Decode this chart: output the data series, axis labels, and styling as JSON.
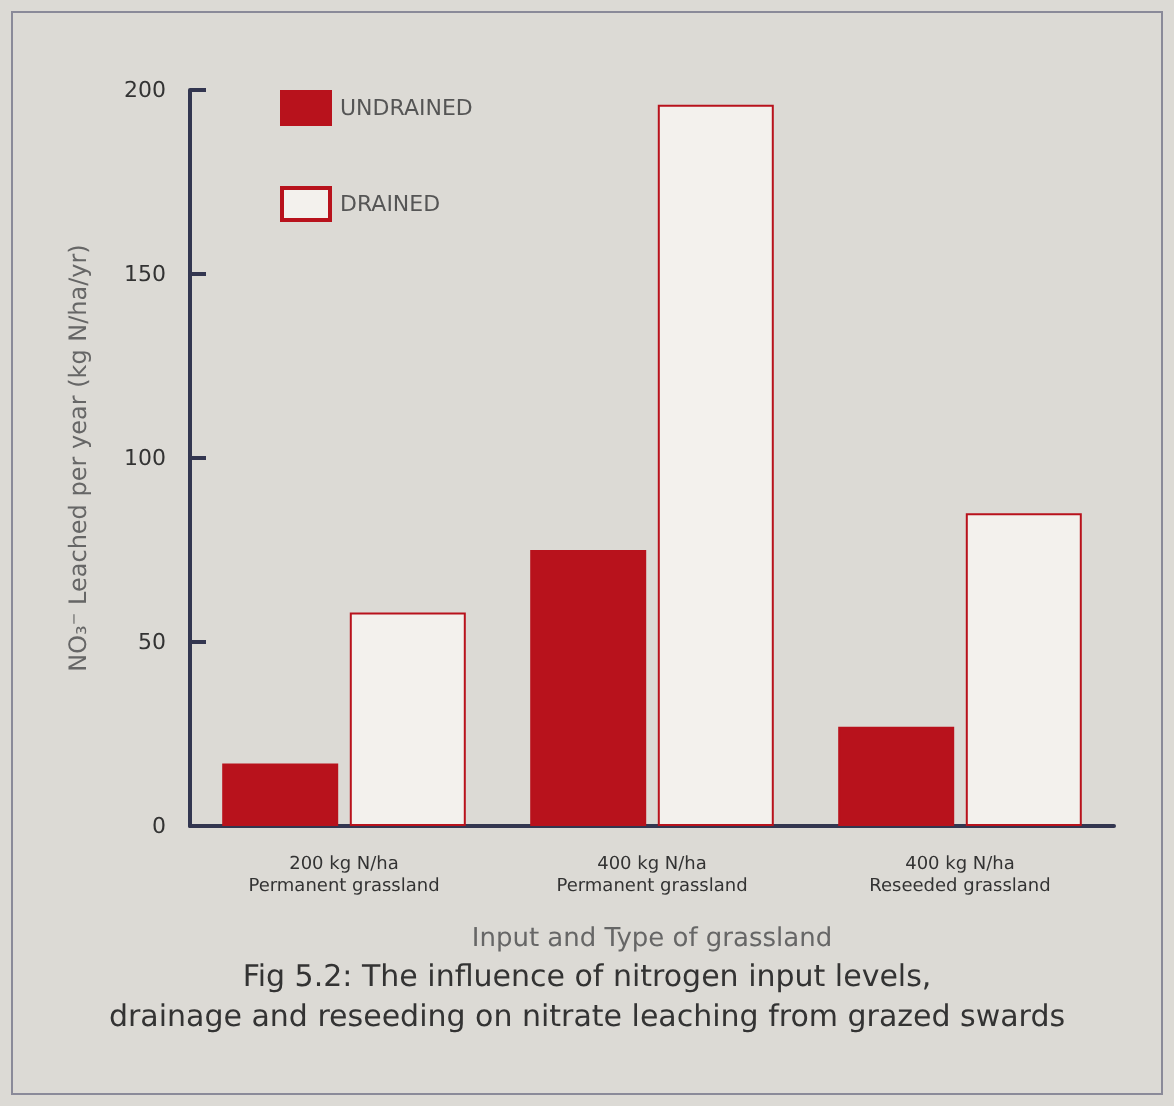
{
  "chart_data": {
    "type": "bar",
    "xlabel": "Input and Type of grassland",
    "ylabel": "NO₃⁻ Leached per year (kg N/ha/yr)",
    "categories": [
      "200 kg N/ha\nPermanent grassland",
      "400 kg N/ha\nPermanent grassland",
      "400 kg N/ha\nReseeded grassland"
    ],
    "series": [
      {
        "name": "UNDRAINED",
        "color": "#b8121c",
        "values": [
          17,
          75,
          27
        ]
      },
      {
        "name": "DRAINED",
        "color": "#f3f1ed",
        "values": [
          58,
          196,
          85
        ]
      }
    ],
    "ylim": [
      0,
      200
    ],
    "yticks": [
      0,
      50,
      100,
      150,
      200
    ],
    "grid": false,
    "legend": "top left",
    "annotations": [
      "Fig 5.2: The influence of nitrogen input levels,\ndrainage and reseeding on nitrate leaching from grazed swards"
    ]
  }
}
